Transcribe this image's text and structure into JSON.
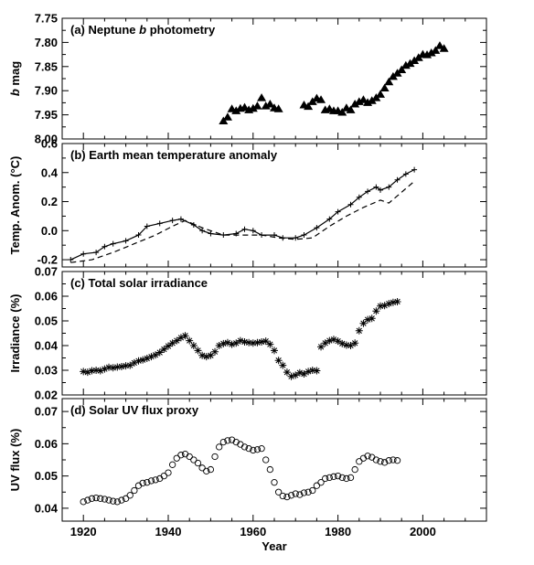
{
  "chart_data": [
    {
      "type": "scatter",
      "title": "(a) Neptune",
      "title_emph": "b",
      "title_suffix": "photometry",
      "ylabel": "b mag",
      "ylabel_emph": "b",
      "ylabel_suffix": "mag",
      "ylim": [
        8.0,
        7.75
      ],
      "y_inverted": true,
      "yticks": [
        7.75,
        7.8,
        7.85,
        7.9,
        7.95,
        8.0
      ],
      "ytick_labels": [
        "7.75",
        "7.80",
        "7.85",
        "7.90",
        "7.95",
        "8.00"
      ],
      "marker": "triangle",
      "series": [
        {
          "x": [
            1953,
            1954,
            1955,
            1956,
            1957,
            1958,
            1959,
            1960,
            1961,
            1962,
            1963,
            1964,
            1965,
            1966,
            1972,
            1973,
            1974,
            1975,
            1976,
            1977,
            1978,
            1979,
            1980,
            1981,
            1982,
            1983,
            1984,
            1985,
            1986,
            1987,
            1988,
            1989,
            1990,
            1991,
            1992,
            1993,
            1994,
            1995,
            1996,
            1997,
            1998,
            1999,
            2000,
            2001,
            2002,
            2003,
            2004,
            2005
          ],
          "y": [
            7.963,
            7.955,
            7.938,
            7.942,
            7.937,
            7.935,
            7.94,
            7.937,
            7.932,
            7.915,
            7.932,
            7.928,
            7.936,
            7.938,
            7.93,
            7.933,
            7.923,
            7.916,
            7.919,
            7.94,
            7.938,
            7.942,
            7.942,
            7.945,
            7.936,
            7.94,
            7.928,
            7.923,
            7.919,
            7.925,
            7.921,
            7.915,
            7.908,
            7.895,
            7.882,
            7.871,
            7.864,
            7.857,
            7.848,
            7.844,
            7.838,
            7.832,
            7.825,
            7.826,
            7.822,
            7.817,
            7.807,
            7.813
          ]
        }
      ]
    },
    {
      "type": "line",
      "title": "(b) Earth mean temperature anomaly",
      "ylabel": "Temp. Anom. (°C)",
      "ylim": [
        -0.25,
        0.6
      ],
      "yticks": [
        -0.2,
        0.0,
        0.2,
        0.4,
        0.6
      ],
      "ytick_labels": [
        "-0.2",
        "0.0",
        "0.2",
        "0.4",
        "0.6"
      ],
      "series": [
        {
          "style": "solid-with-plus",
          "x": [
            1917,
            1920,
            1923,
            1925,
            1927,
            1930,
            1933,
            1935,
            1938,
            1941,
            1943,
            1946,
            1948,
            1950,
            1953,
            1956,
            1958,
            1960,
            1962,
            1965,
            1967,
            1970,
            1972,
            1975,
            1978,
            1980,
            1983,
            1985,
            1987,
            1989,
            1990,
            1992,
            1994,
            1996,
            1998
          ],
          "y": [
            -0.2,
            -0.16,
            -0.15,
            -0.11,
            -0.09,
            -0.07,
            -0.03,
            0.03,
            0.05,
            0.07,
            0.08,
            0.04,
            0.0,
            -0.02,
            -0.03,
            -0.02,
            0.01,
            0.0,
            -0.03,
            -0.03,
            -0.05,
            -0.05,
            -0.03,
            0.02,
            0.08,
            0.13,
            0.18,
            0.23,
            0.27,
            0.3,
            0.28,
            0.3,
            0.35,
            0.39,
            0.42
          ]
        },
        {
          "style": "dashed",
          "x": [
            1917,
            1922,
            1927,
            1932,
            1937,
            1941,
            1944,
            1948,
            1953,
            1958,
            1962,
            1966,
            1970,
            1974,
            1978,
            1982,
            1986,
            1990,
            1992,
            1994,
            1998
          ],
          "y": [
            -0.22,
            -0.2,
            -0.15,
            -0.09,
            -0.03,
            0.03,
            0.07,
            0.02,
            -0.03,
            -0.03,
            -0.03,
            -0.05,
            -0.06,
            -0.05,
            0.03,
            0.1,
            0.16,
            0.21,
            0.19,
            0.24,
            0.34
          ]
        }
      ]
    },
    {
      "type": "scatter",
      "title": "(c) Total solar irradiance",
      "ylabel": "Irradiance (%)",
      "ylim": [
        0.02,
        0.07
      ],
      "yticks": [
        0.02,
        0.03,
        0.04,
        0.05,
        0.06,
        0.07
      ],
      "ytick_labels": [
        "0.02",
        "0.03",
        "0.04",
        "0.05",
        "0.06",
        "0.07"
      ],
      "marker": "asterisk",
      "series": [
        {
          "x": [
            1920,
            1921,
            1922,
            1923,
            1924,
            1925,
            1926,
            1927,
            1928,
            1929,
            1930,
            1931,
            1932,
            1933,
            1934,
            1935,
            1936,
            1937,
            1938,
            1939,
            1940,
            1941,
            1942,
            1943,
            1944,
            1945,
            1946,
            1947,
            1948,
            1949,
            1950,
            1951,
            1952,
            1953,
            1954,
            1955,
            1956,
            1957,
            1958,
            1959,
            1960,
            1961,
            1962,
            1963,
            1964,
            1965,
            1966,
            1967,
            1968,
            1969,
            1970,
            1971,
            1972,
            1973,
            1974,
            1975,
            1976,
            1977,
            1978,
            1979,
            1980,
            1981,
            1982,
            1983,
            1984,
            1985,
            1986,
            1987,
            1988,
            1989,
            1990,
            1991,
            1992,
            1993,
            1994
          ],
          "y": [
            0.0295,
            0.0292,
            0.0298,
            0.03,
            0.0298,
            0.0305,
            0.0312,
            0.031,
            0.0313,
            0.0315,
            0.0318,
            0.032,
            0.033,
            0.0338,
            0.0342,
            0.0348,
            0.0355,
            0.0362,
            0.0372,
            0.0385,
            0.0398,
            0.041,
            0.042,
            0.0432,
            0.044,
            0.042,
            0.04,
            0.038,
            0.036,
            0.0355,
            0.036,
            0.0375,
            0.04,
            0.0408,
            0.0412,
            0.0405,
            0.041,
            0.042,
            0.0415,
            0.0412,
            0.041,
            0.0412,
            0.0415,
            0.0418,
            0.0405,
            0.038,
            0.034,
            0.032,
            0.0292,
            0.0275,
            0.028,
            0.029,
            0.0285,
            0.0295,
            0.03,
            0.0298,
            0.0395,
            0.041,
            0.042,
            0.0425,
            0.0418,
            0.0408,
            0.0402,
            0.04,
            0.041,
            0.046,
            0.049,
            0.0505,
            0.051,
            0.054,
            0.056,
            0.0562,
            0.057,
            0.0575,
            0.0578
          ]
        }
      ]
    },
    {
      "type": "scatter",
      "title": "(d) Solar UV flux proxy",
      "ylabel": "UV flux (%)",
      "ylim": [
        0.036,
        0.074
      ],
      "yticks": [
        0.04,
        0.05,
        0.06,
        0.07
      ],
      "ytick_labels": [
        "0.04",
        "0.05",
        "0.06",
        "0.07"
      ],
      "marker": "circle",
      "series": [
        {
          "x": [
            1920,
            1921,
            1922,
            1923,
            1924,
            1925,
            1926,
            1927,
            1928,
            1929,
            1930,
            1931,
            1932,
            1933,
            1934,
            1935,
            1936,
            1937,
            1938,
            1939,
            1940,
            1941,
            1942,
            1943,
            1944,
            1945,
            1946,
            1947,
            1948,
            1949,
            1950,
            1951,
            1952,
            1953,
            1954,
            1955,
            1956,
            1957,
            1958,
            1959,
            1960,
            1961,
            1962,
            1963,
            1964,
            1965,
            1966,
            1967,
            1968,
            1969,
            1970,
            1971,
            1972,
            1973,
            1974,
            1975,
            1976,
            1977,
            1978,
            1979,
            1980,
            1981,
            1982,
            1983,
            1984,
            1985,
            1986,
            1987,
            1988,
            1989,
            1990,
            1991,
            1992,
            1993,
            1994
          ],
          "y": [
            0.042,
            0.0425,
            0.043,
            0.0432,
            0.043,
            0.0428,
            0.0425,
            0.0422,
            0.042,
            0.0425,
            0.043,
            0.044,
            0.0455,
            0.047,
            0.0478,
            0.048,
            0.0485,
            0.0488,
            0.0492,
            0.05,
            0.051,
            0.0535,
            0.0555,
            0.0565,
            0.0568,
            0.056,
            0.055,
            0.054,
            0.0525,
            0.0515,
            0.052,
            0.056,
            0.059,
            0.0605,
            0.061,
            0.0612,
            0.0605,
            0.0598,
            0.059,
            0.0585,
            0.058,
            0.0582,
            0.0585,
            0.055,
            0.052,
            0.048,
            0.045,
            0.0438,
            0.0435,
            0.044,
            0.0445,
            0.0442,
            0.0448,
            0.045,
            0.0455,
            0.047,
            0.048,
            0.0492,
            0.0495,
            0.0498,
            0.05,
            0.0495,
            0.0492,
            0.0495,
            0.052,
            0.0545,
            0.0555,
            0.0562,
            0.0558,
            0.055,
            0.0545,
            0.0542,
            0.0548,
            0.055,
            0.0548
          ]
        }
      ]
    }
  ],
  "shared_x": {
    "xlabel": "Year",
    "xlim": [
      1915,
      2015
    ],
    "xticks": [
      1920,
      1940,
      1960,
      1980,
      2000
    ],
    "xtick_labels": [
      "1920",
      "1940",
      "1960",
      "1980",
      "2000"
    ]
  }
}
